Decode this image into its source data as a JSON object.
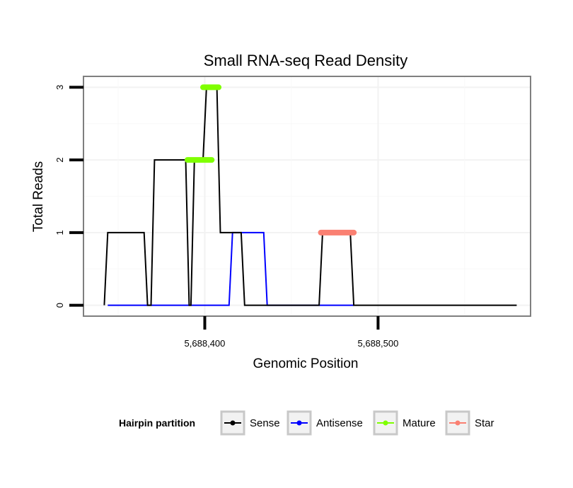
{
  "chart_data": {
    "type": "line",
    "title": "Small RNA-seq Read Density",
    "xlabel": "Genomic Position",
    "ylabel": "Total Reads",
    "xlim": [
      5688330,
      5688588
    ],
    "ylim": [
      -0.15,
      3.15
    ],
    "xticks": [
      {
        "value": 5688400,
        "label": "5,688,400"
      },
      {
        "value": 5688500,
        "label": "5,688,500"
      }
    ],
    "yticks": [
      {
        "value": 0,
        "label": "0"
      },
      {
        "value": 1,
        "label": "1"
      },
      {
        "value": 2,
        "label": "2"
      },
      {
        "value": 3,
        "label": "3"
      }
    ],
    "grid": true,
    "legend": {
      "title": "Hairpin partition",
      "position": "bottom",
      "entries": [
        {
          "name": "Sense",
          "color": "#000000"
        },
        {
          "name": "Antisense",
          "color": "#0000ff"
        },
        {
          "name": "Mature",
          "color": "#7fff00"
        },
        {
          "name": "Star",
          "color": "#fa8072"
        }
      ]
    },
    "series": [
      {
        "name": "Sense",
        "color": "#000000",
        "points": [
          [
            5688342,
            0
          ],
          [
            5688344,
            1
          ],
          [
            5688365,
            1
          ],
          [
            5688367,
            0
          ],
          [
            5688369,
            0
          ],
          [
            5688371,
            2
          ],
          [
            5688389,
            2
          ],
          [
            5688391,
            0
          ],
          [
            5688392,
            0
          ],
          [
            5688394,
            2
          ],
          [
            5688399,
            2
          ],
          [
            5688401,
            3
          ],
          [
            5688407,
            3
          ],
          [
            5688409,
            1
          ],
          [
            5688421,
            1
          ],
          [
            5688423,
            0
          ],
          [
            5688466,
            0
          ],
          [
            5688468,
            1
          ],
          [
            5688484,
            1
          ],
          [
            5688486,
            0
          ],
          [
            5688580,
            0
          ]
        ]
      },
      {
        "name": "Antisense",
        "color": "#0000ff",
        "points": [
          [
            5688344,
            0
          ],
          [
            5688414,
            0
          ],
          [
            5688416,
            1
          ],
          [
            5688434,
            1
          ],
          [
            5688436,
            0
          ],
          [
            5688486,
            0
          ]
        ]
      },
      {
        "name": "Mature",
        "color": "#7fff00",
        "segments": [
          {
            "x0": 5688390,
            "x1": 5688404,
            "y": 2
          },
          {
            "x0": 5688399,
            "x1": 5688408,
            "y": 3
          }
        ]
      },
      {
        "name": "Star",
        "color": "#fa8072",
        "segments": [
          {
            "x0": 5688467,
            "x1": 5688486,
            "y": 1
          }
        ]
      }
    ]
  }
}
